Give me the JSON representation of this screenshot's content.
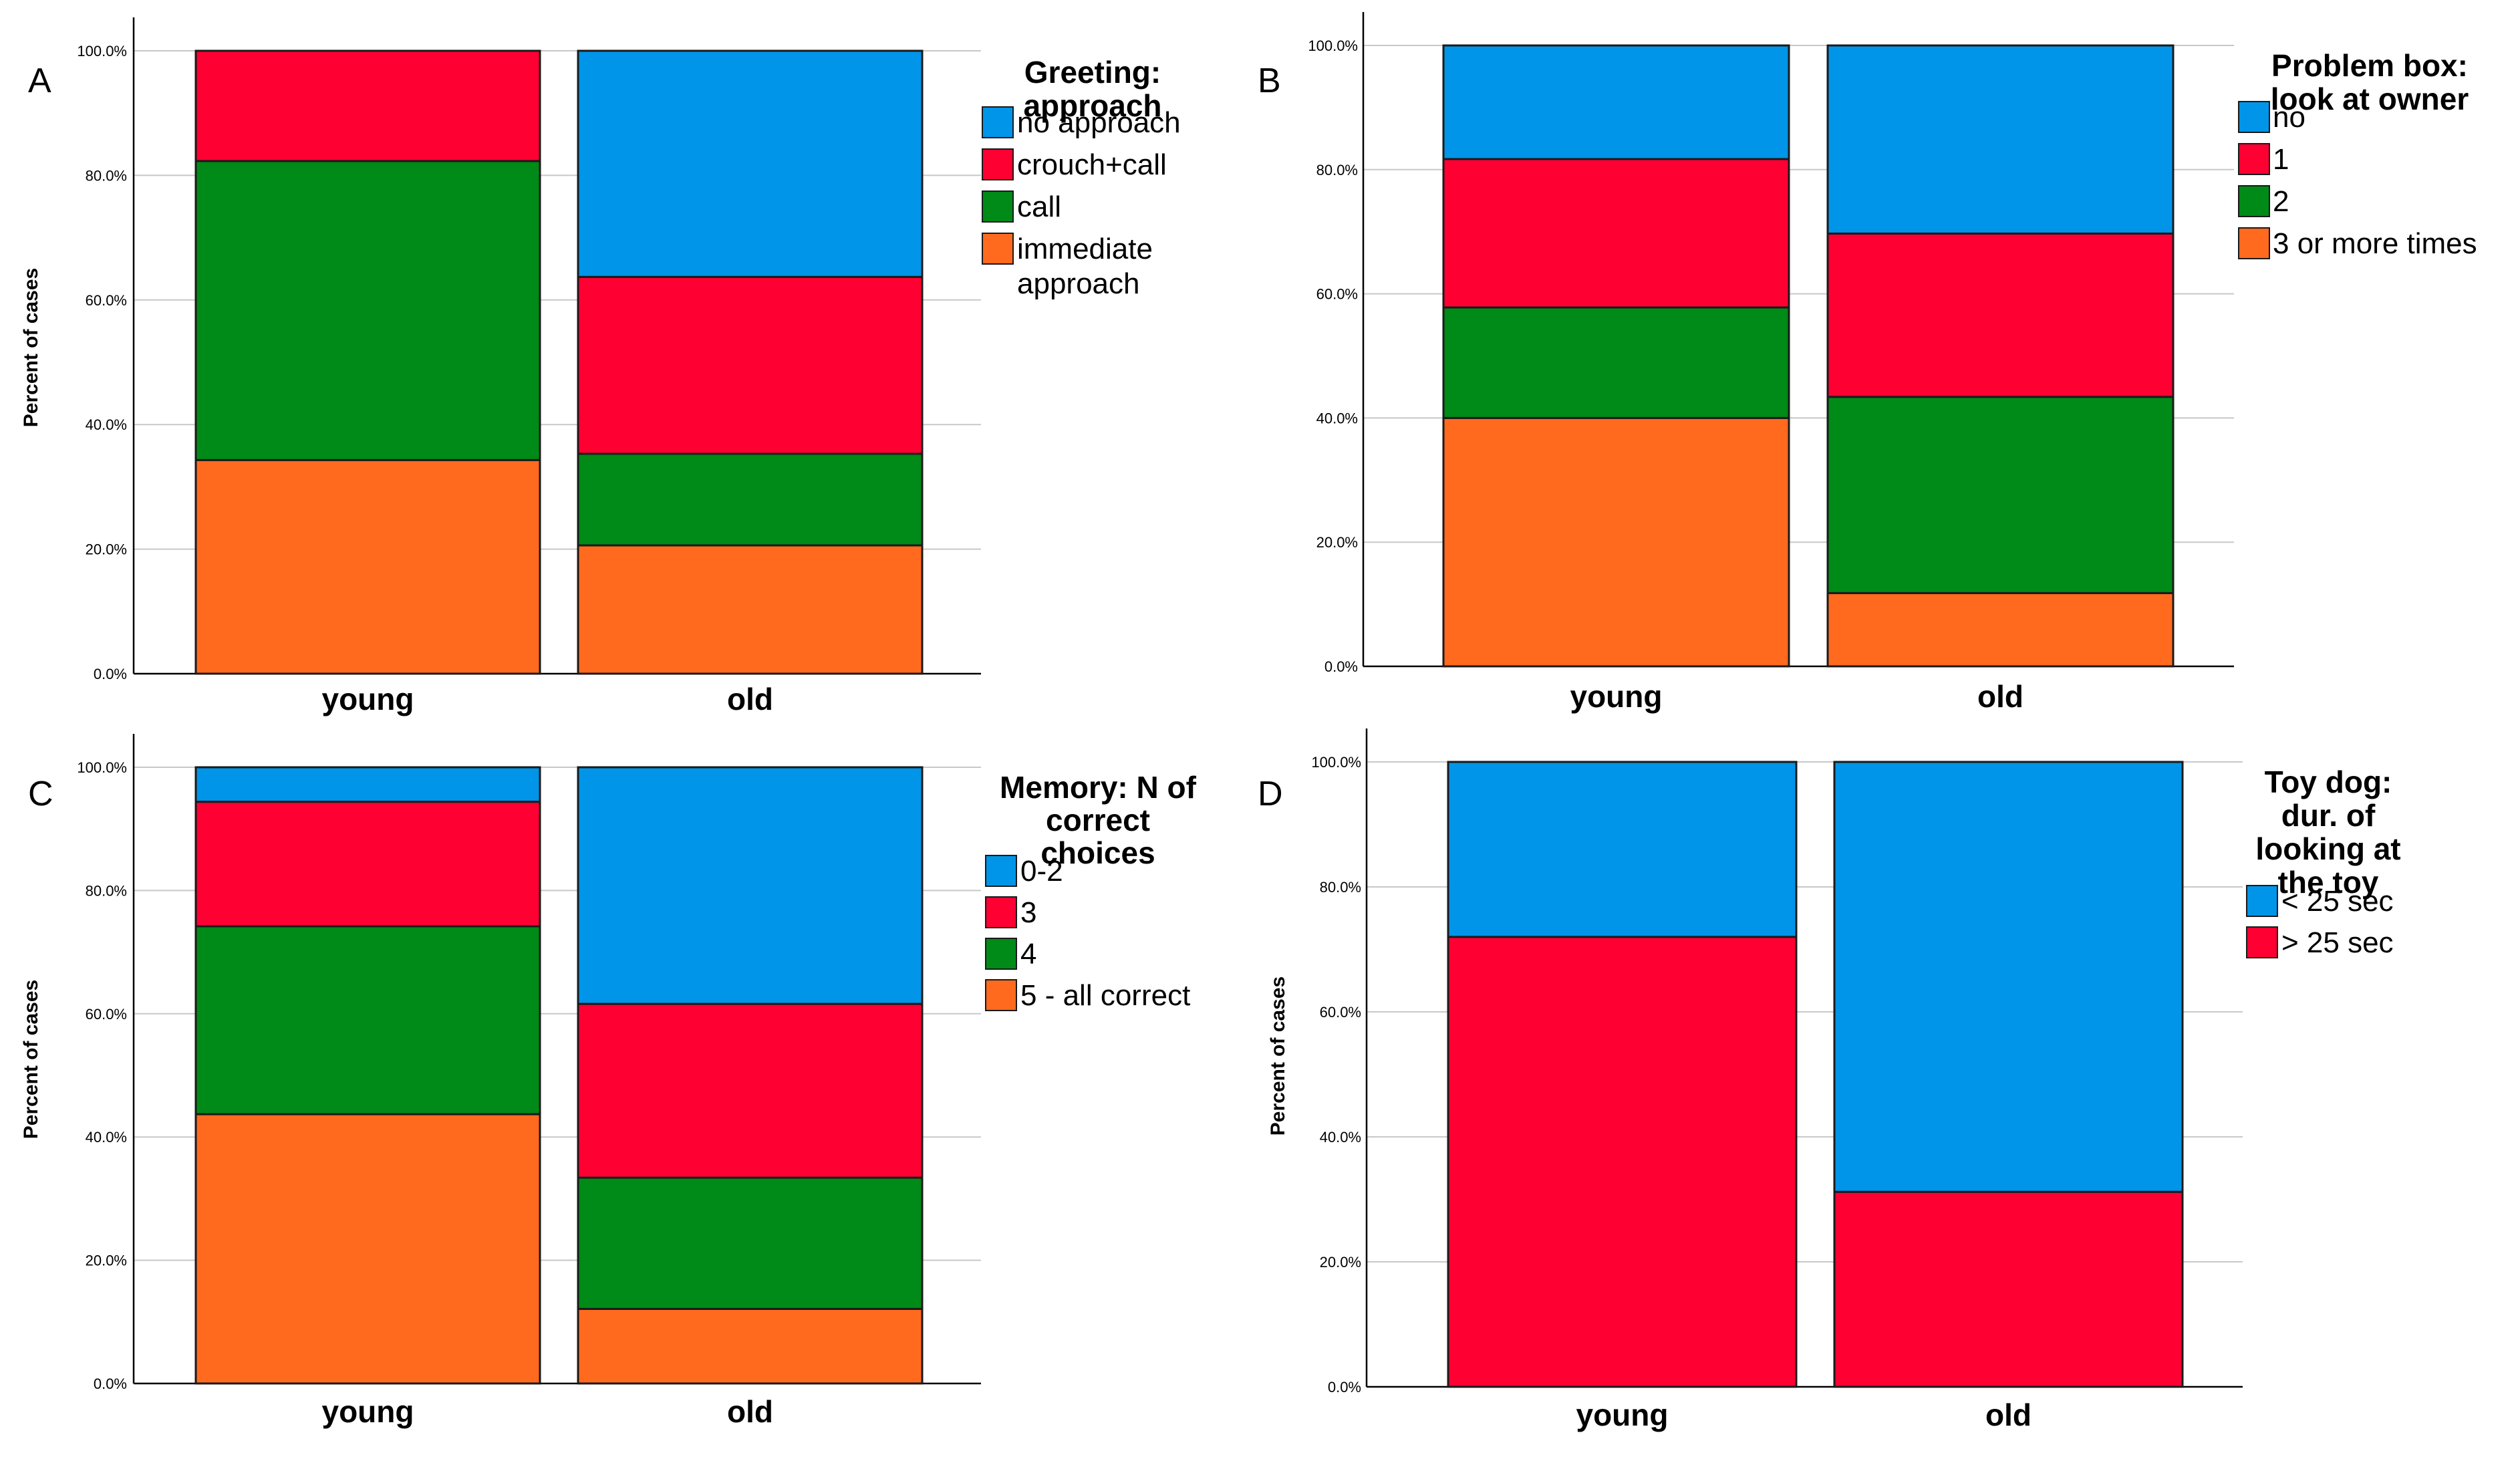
{
  "figure": {
    "panels_count": 4
  },
  "chart_data": [
    {
      "type": "bar",
      "stacked": true,
      "panel_label": "A",
      "title": "",
      "xlabel": "",
      "ylabel": "Percent of cases",
      "ylim": [
        0,
        100
      ],
      "y_ticks": [
        "0.0%",
        "20.0%",
        "40.0%",
        "60.0%",
        "80.0%",
        "100.0%"
      ],
      "categories": [
        "young",
        "old"
      ],
      "legend_title": [
        "Greeting:",
        "approach"
      ],
      "legend_position": "right",
      "series": [
        {
          "name": "immediate approach",
          "label_lines": [
            "immediate",
            "approach"
          ],
          "color": "#ff6a1f",
          "values": [
            34.3,
            20.6
          ]
        },
        {
          "name": "call",
          "label_lines": [
            "call"
          ],
          "color": "#008a17",
          "values": [
            48.0,
            14.7
          ]
        },
        {
          "name": "crouch+call",
          "label_lines": [
            "crouch+call"
          ],
          "color": "#ff0033",
          "values": [
            17.7,
            28.4
          ]
        },
        {
          "name": "no approach",
          "label_lines": [
            "no approach"
          ],
          "color": "#0095e8",
          "values": [
            0.0,
            36.3
          ]
        }
      ]
    },
    {
      "type": "bar",
      "stacked": true,
      "panel_label": "B",
      "title": "",
      "xlabel": "",
      "ylabel": "",
      "ylim": [
        0,
        100
      ],
      "y_ticks": [
        "0.0%",
        "20.0%",
        "40.0%",
        "60.0%",
        "80.0%",
        "100.0%"
      ],
      "categories": [
        "young",
        "old"
      ],
      "legend_title": [
        "Problem box:",
        "look at owner"
      ],
      "legend_position": "right",
      "series": [
        {
          "name": "3 or more times",
          "label_lines": [
            "3 or more times"
          ],
          "color": "#ff6a1f",
          "values": [
            40.0,
            11.8
          ]
        },
        {
          "name": "2",
          "label_lines": [
            "2"
          ],
          "color": "#008a17",
          "values": [
            17.8,
            31.6
          ]
        },
        {
          "name": "1",
          "label_lines": [
            "1"
          ],
          "color": "#ff0033",
          "values": [
            23.9,
            26.3
          ]
        },
        {
          "name": "no",
          "label_lines": [
            "no"
          ],
          "color": "#0095e8",
          "values": [
            18.3,
            30.3
          ]
        }
      ]
    },
    {
      "type": "bar",
      "stacked": true,
      "panel_label": "C",
      "title": "",
      "xlabel": "",
      "ylabel": "Percent of cases",
      "ylim": [
        0,
        100
      ],
      "y_ticks": [
        "0.0%",
        "20.0%",
        "40.0%",
        "60.0%",
        "80.0%",
        "100.0%"
      ],
      "categories": [
        "young",
        "old"
      ],
      "legend_title": [
        "Memory: N of",
        "correct",
        "choices"
      ],
      "legend_position": "right",
      "series": [
        {
          "name": "5 - all correct",
          "label_lines": [
            "5 - all correct"
          ],
          "color": "#ff6a1f",
          "values": [
            43.7,
            12.1
          ]
        },
        {
          "name": "4",
          "label_lines": [
            "4"
          ],
          "color": "#008a17",
          "values": [
            30.5,
            21.3
          ]
        },
        {
          "name": "3",
          "label_lines": [
            "3"
          ],
          "color": "#ff0033",
          "values": [
            20.2,
            28.2
          ]
        },
        {
          "name": "0-2",
          "label_lines": [
            "0-2"
          ],
          "color": "#0095e8",
          "values": [
            5.6,
            38.4
          ]
        }
      ]
    },
    {
      "type": "bar",
      "stacked": true,
      "panel_label": "D",
      "title": "",
      "xlabel": "",
      "ylabel": "Percent of cases",
      "ylim": [
        0,
        100
      ],
      "y_ticks": [
        "0.0%",
        "20.0%",
        "40.0%",
        "60.0%",
        "80.0%",
        "100.0%"
      ],
      "categories": [
        "young",
        "old"
      ],
      "legend_title": [
        "Toy dog:",
        "dur. of",
        "looking at",
        "the toy"
      ],
      "legend_position": "right",
      "series": [
        {
          "name": "> 25 sec",
          "label_lines": [
            "> 25 sec"
          ],
          "color": "#ff0033",
          "values": [
            72.0,
            31.2
          ]
        },
        {
          "name": "< 25 sec",
          "label_lines": [
            "< 25 sec"
          ],
          "color": "#0095e8",
          "values": [
            28.0,
            68.8
          ]
        }
      ]
    }
  ]
}
